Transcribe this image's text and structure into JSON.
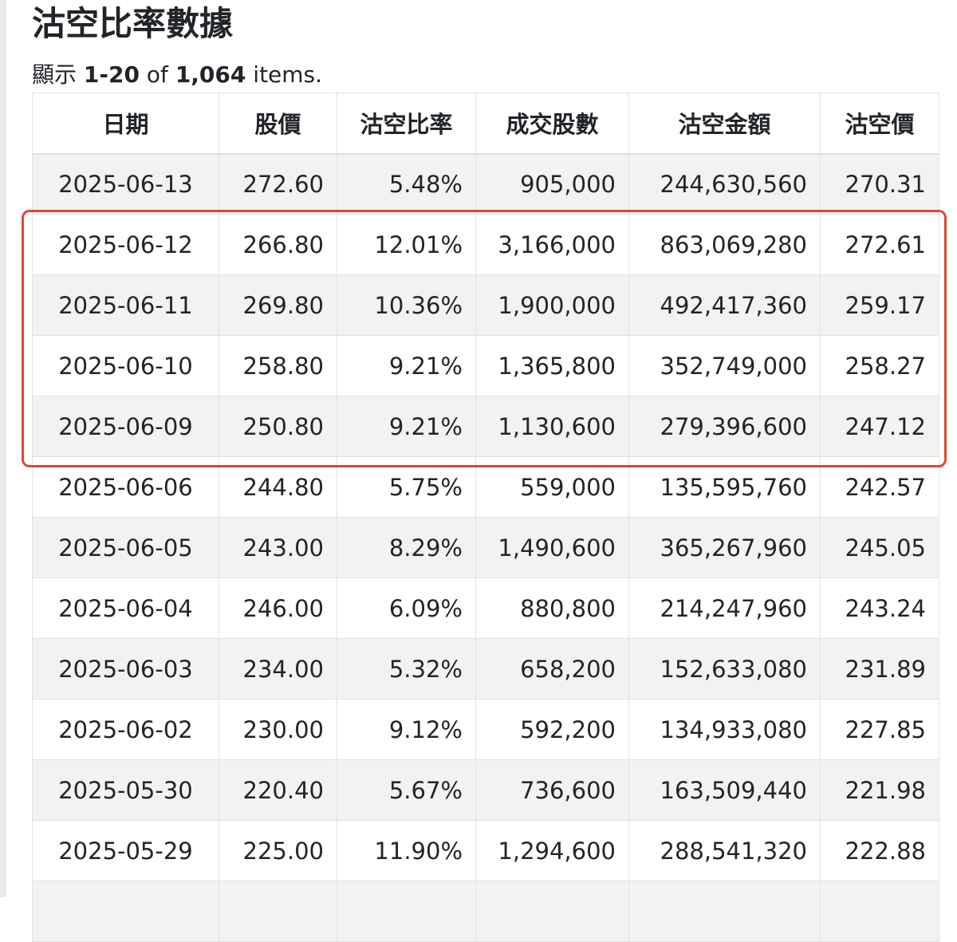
{
  "page": {
    "title": "沽空比率數據",
    "summary": {
      "prefix": "顯示",
      "range": "1-20",
      "of": "of",
      "total": "1,064",
      "suffix": "items."
    }
  },
  "table": {
    "headers": [
      "日期",
      "股價",
      "沽空比率",
      "成交股數",
      "沽空金額",
      "沽空價"
    ],
    "rows": [
      [
        "2025-06-13",
        "272.60",
        "5.48%",
        "905,000",
        "244,630,560",
        "270.31"
      ],
      [
        "2025-06-12",
        "266.80",
        "12.01%",
        "3,166,000",
        "863,069,280",
        "272.61"
      ],
      [
        "2025-06-11",
        "269.80",
        "10.36%",
        "1,900,000",
        "492,417,360",
        "259.17"
      ],
      [
        "2025-06-10",
        "258.80",
        "9.21%",
        "1,365,800",
        "352,749,000",
        "258.27"
      ],
      [
        "2025-06-09",
        "250.80",
        "9.21%",
        "1,130,600",
        "279,396,600",
        "247.12"
      ],
      [
        "2025-06-06",
        "244.80",
        "5.75%",
        "559,000",
        "135,595,760",
        "242.57"
      ],
      [
        "2025-06-05",
        "243.00",
        "8.29%",
        "1,490,600",
        "365,267,960",
        "245.05"
      ],
      [
        "2025-06-04",
        "246.00",
        "6.09%",
        "880,800",
        "214,247,960",
        "243.24"
      ],
      [
        "2025-06-03",
        "234.00",
        "5.32%",
        "658,200",
        "152,633,080",
        "231.89"
      ],
      [
        "2025-06-02",
        "230.00",
        "9.12%",
        "592,200",
        "134,933,080",
        "227.85"
      ],
      [
        "2025-05-30",
        "220.40",
        "5.67%",
        "736,600",
        "163,509,440",
        "221.98"
      ],
      [
        "2025-05-29",
        "225.00",
        "11.90%",
        "1,294,600",
        "288,541,320",
        "222.88"
      ],
      [
        "",
        "",
        "",
        "",
        "",
        ""
      ]
    ]
  },
  "highlight": {
    "color": "#e0472f",
    "rows": [
      "2025-06-12",
      "2025-06-11",
      "2025-06-10",
      "2025-06-09"
    ]
  },
  "colors": {
    "row_stripe": "#f2f2f2",
    "border": "#dee2e6",
    "text": "#212529"
  }
}
